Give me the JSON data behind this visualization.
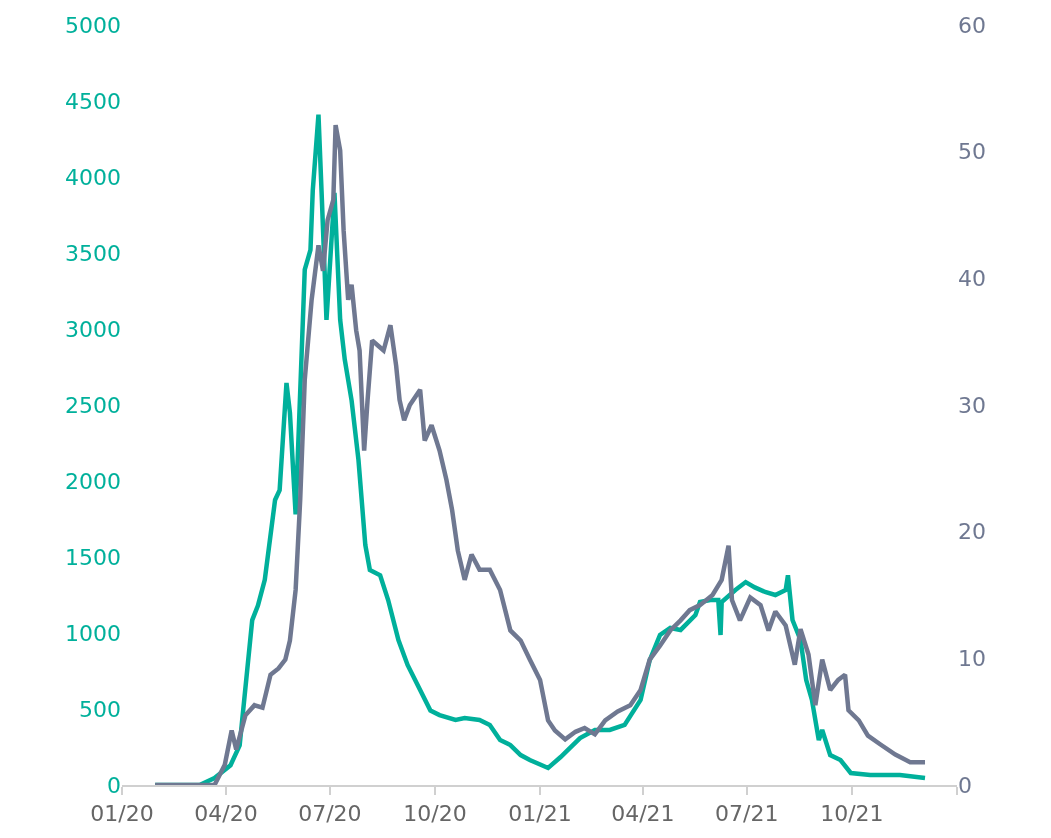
{
  "chart_data": {
    "type": "line",
    "xlim": [
      "2020-01-01",
      "2022-01-01"
    ],
    "xticks": [
      {
        "value": "2020-01-01",
        "label": "01/20"
      },
      {
        "value": "2020-04-01",
        "label": "04/20"
      },
      {
        "value": "2020-07-01",
        "label": "07/20"
      },
      {
        "value": "2020-10-01",
        "label": "10/20"
      },
      {
        "value": "2021-01-01",
        "label": "01/21"
      },
      {
        "value": "2021-04-01",
        "label": "04/21"
      },
      {
        "value": "2021-07-01",
        "label": "07/21"
      },
      {
        "value": "2021-10-01",
        "label": "10/21"
      },
      {
        "value": "2022-01-01",
        "label": null
      }
    ],
    "ylim": [
      0,
      5000
    ],
    "yticks": [
      0,
      500,
      1000,
      1500,
      2000,
      2500,
      3000,
      3500,
      4000,
      4500,
      5000
    ],
    "y2lim": [
      0,
      60
    ],
    "y2ticks": [
      0,
      10,
      20,
      30,
      40,
      50,
      60
    ],
    "marker": "none",
    "line_style": "solid",
    "series": [
      {
        "color": "#00b09b",
        "x": [
          "2020-01-30",
          "2020-03-09",
          "2020-03-22",
          "2020-04-05",
          "2020-04-13",
          "2020-04-24",
          "2020-04-29",
          "2020-05-05",
          "2020-05-14",
          "2020-05-18",
          "2020-05-24",
          "2020-05-27",
          "2020-06-01",
          "2020-06-09",
          "2020-06-14",
          "2020-06-16",
          "2020-06-21",
          "2020-06-24",
          "2020-06-28",
          "2020-07-05",
          "2020-07-10",
          "2020-07-14",
          "2020-07-20",
          "2020-07-26",
          "2020-08-01",
          "2020-08-05",
          "2020-08-14",
          "2020-08-21",
          "2020-08-30",
          "2020-09-07",
          "2020-09-18",
          "2020-09-27",
          "2020-10-05",
          "2020-10-19",
          "2020-10-27",
          "2020-11-09",
          "2020-11-18",
          "2020-11-27",
          "2020-12-06",
          "2020-12-15",
          "2020-12-23",
          "2021-01-08",
          "2021-01-19",
          "2021-01-27",
          "2021-02-05",
          "2021-02-18",
          "2021-03-03",
          "2021-03-16",
          "2021-03-30",
          "2021-04-07",
          "2021-04-16",
          "2021-04-25",
          "2021-05-04",
          "2021-05-17",
          "2021-05-21",
          "2021-05-30",
          "2021-06-06",
          "2021-06-08",
          "2021-06-09",
          "2021-06-21",
          "2021-06-30",
          "2021-07-08",
          "2021-07-17",
          "2021-07-26",
          "2021-08-04",
          "2021-08-06",
          "2021-08-10",
          "2021-08-17",
          "2021-08-22",
          "2021-08-27",
          "2021-09-02",
          "2021-09-05",
          "2021-09-12",
          "2021-09-21",
          "2021-09-30",
          "2021-10-17",
          "2021-11-12",
          "2021-12-04"
        ],
        "values": [
          0,
          0,
          46,
          130,
          260,
          1085,
          1180,
          1350,
          1875,
          1940,
          2645,
          2450,
          1780,
          3390,
          3520,
          3910,
          4410,
          3850,
          3060,
          3895,
          3060,
          2800,
          2530,
          2140,
          1580,
          1415,
          1380,
          1217,
          954,
          790,
          625,
          490,
          460,
          428,
          440,
          428,
          395,
          296,
          263,
          197,
          164,
          112,
          184,
          243,
          309,
          362,
          362,
          395,
          560,
          822,
          987,
          1033,
          1020,
          1118,
          1204,
          1217,
          1217,
          987,
          1204,
          1283,
          1335,
          1300,
          1270,
          1250,
          1283,
          1380,
          1085,
          954,
          690,
          560,
          296,
          362,
          197,
          164,
          79,
          66,
          66,
          46
        ]
      },
      {
        "color": "#6f7891",
        "axis": "y2",
        "x": [
          "2020-01-30",
          "2020-03-22",
          "2020-03-31",
          "2020-04-06",
          "2020-04-10",
          "2020-04-18",
          "2020-04-26",
          "2020-05-03",
          "2020-05-10",
          "2020-05-17",
          "2020-05-23",
          "2020-05-27",
          "2020-06-01",
          "2020-06-05",
          "2020-06-09",
          "2020-06-15",
          "2020-06-21",
          "2020-06-25",
          "2020-06-29",
          "2020-07-04",
          "2020-07-06",
          "2020-07-10",
          "2020-07-13",
          "2020-07-17",
          "2020-07-20",
          "2020-07-24",
          "2020-07-27",
          "2020-07-31",
          "2020-08-03",
          "2020-08-07",
          "2020-08-12",
          "2020-08-17",
          "2020-08-23",
          "2020-08-28",
          "2020-08-31",
          "2020-09-04",
          "2020-09-09",
          "2020-09-18",
          "2020-09-22",
          "2020-09-28",
          "2020-10-05",
          "2020-10-11",
          "2020-10-16",
          "2020-10-21",
          "2020-10-27",
          "2020-11-02",
          "2020-11-09",
          "2020-11-18",
          "2020-11-27",
          "2020-12-06",
          "2020-12-15",
          "2020-12-23",
          "2021-01-01",
          "2021-01-08",
          "2021-01-14",
          "2021-01-23",
          "2021-02-01",
          "2021-02-09",
          "2021-02-18",
          "2021-02-27",
          "2021-03-10",
          "2021-03-21",
          "2021-03-30",
          "2021-04-07",
          "2021-04-16",
          "2021-04-25",
          "2021-05-04",
          "2021-05-12",
          "2021-05-21",
          "2021-06-01",
          "2021-06-09",
          "2021-06-15",
          "2021-06-18",
          "2021-06-25",
          "2021-07-04",
          "2021-07-13",
          "2021-07-20",
          "2021-07-26",
          "2021-08-04",
          "2021-08-12",
          "2021-08-17",
          "2021-08-24",
          "2021-08-30",
          "2021-09-05",
          "2021-09-12",
          "2021-09-19",
          "2021-09-25",
          "2021-09-28",
          "2021-10-07",
          "2021-10-15",
          "2021-10-26",
          "2021-11-08",
          "2021-11-21",
          "2021-12-04"
        ],
        "values": [
          0,
          0,
          1.6,
          4.3,
          2.8,
          5.5,
          6.3,
          6.1,
          8.7,
          9.2,
          9.9,
          11.4,
          15.4,
          22.5,
          32,
          38.3,
          42.6,
          40.6,
          44.6,
          46.2,
          52.1,
          50.1,
          43.8,
          38.3,
          39.5,
          35.9,
          34.3,
          26.4,
          30.4,
          35.1,
          34.7,
          34.3,
          36.3,
          33.1,
          30.4,
          28.8,
          30.0,
          31.2,
          27.2,
          28.4,
          26.4,
          24.1,
          21.7,
          18.5,
          16.2,
          18.2,
          17.0,
          17.0,
          15.4,
          12.2,
          11.4,
          9.9,
          8.3,
          5.1,
          4.3,
          3.6,
          4.2,
          4.5,
          4.0,
          5.1,
          5.8,
          6.3,
          7.5,
          9.9,
          11.0,
          12.2,
          13.0,
          13.8,
          14.2,
          15.0,
          16.2,
          18.9,
          14.6,
          13.0,
          14.8,
          14.2,
          12.2,
          13.7,
          12.6,
          9.5,
          12.3,
          10.3,
          6.3,
          9.9,
          7.5,
          8.3,
          8.7,
          5.9,
          5.1,
          3.9,
          3.2,
          2.4,
          1.8,
          1.8
        ]
      }
    ]
  }
}
